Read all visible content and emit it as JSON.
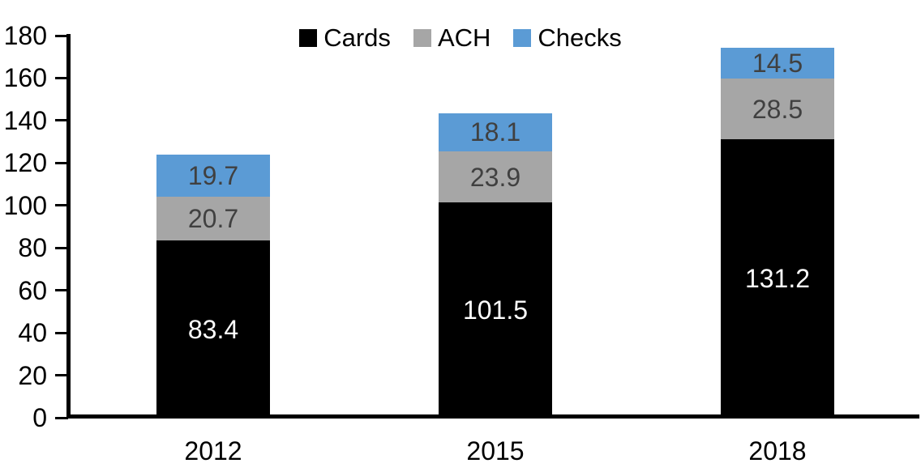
{
  "chart_data": {
    "type": "bar",
    "stacked": true,
    "title": "",
    "xlabel": "",
    "ylabel": "",
    "categories": [
      "2012",
      "2015",
      "2018"
    ],
    "series": [
      {
        "name": "Cards",
        "color": "#000000",
        "label_color": "#ffffff",
        "values": [
          83.4,
          101.5,
          131.2
        ]
      },
      {
        "name": "ACH",
        "color": "#A6A6A6",
        "label_color": "#404040",
        "values": [
          20.7,
          23.9,
          28.5
        ]
      },
      {
        "name": "Checks",
        "color": "#5B9BD5",
        "label_color": "#404040",
        "values": [
          19.7,
          18.1,
          14.5
        ]
      }
    ],
    "value_labels": [
      "83.4",
      "101.5",
      "131.2",
      "20.7",
      "23.9",
      "28.5",
      "19.7",
      "18.1",
      "14.5"
    ],
    "ylim": [
      0,
      180
    ],
    "ytick_step": 20,
    "ytick_labels": [
      "0",
      "20",
      "40",
      "60",
      "80",
      "100",
      "120",
      "140",
      "160",
      "180"
    ],
    "grid": false,
    "legend_position": "top",
    "axis_color": "#000000",
    "text_color": "#000000",
    "background_color": "#ffffff"
  }
}
